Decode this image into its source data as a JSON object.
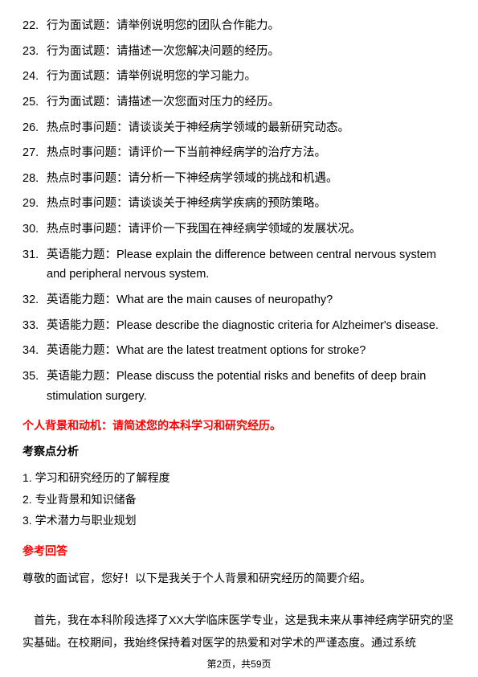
{
  "questions": [
    {
      "num": "22.",
      "text": "行为面试题：请举例说明您的团队合作能力。"
    },
    {
      "num": "23.",
      "text": "行为面试题：请描述一次您解决问题的经历。"
    },
    {
      "num": "24.",
      "text": "行为面试题：请举例说明您的学习能力。"
    },
    {
      "num": "25.",
      "text": "行为面试题：请描述一次您面对压力的经历。"
    },
    {
      "num": "26.",
      "text": "热点时事问题：请谈谈关于神经病学领域的最新研究动态。"
    },
    {
      "num": "27.",
      "text": "热点时事问题：请评价一下当前神经病学的治疗方法。"
    },
    {
      "num": "28.",
      "text": "热点时事问题：请分析一下神经病学领域的挑战和机遇。"
    },
    {
      "num": "29.",
      "text": "热点时事问题：请谈谈关于神经病学疾病的预防策略。"
    },
    {
      "num": "30.",
      "text": "热点时事问题：请评价一下我国在神经病学领域的发展状况。"
    },
    {
      "num": "31.",
      "text": "英语能力题：Please explain the difference between central nervous system and peripheral nervous system."
    },
    {
      "num": "32.",
      "text": "英语能力题：What are the main causes of neuropathy?"
    },
    {
      "num": "33.",
      "text": "英语能力题：Please describe the diagnostic criteria for Alzheimer's disease."
    },
    {
      "num": "34.",
      "text": "英语能力题：What are the latest treatment options for stroke?"
    },
    {
      "num": "35.",
      "text": "英语能力题：Please discuss the potential risks and benefits of deep brain stimulation surgery."
    }
  ],
  "section_title": "个人背景和动机：请简述您的本科学习和研究经历。",
  "analysis_heading": "考察点分析",
  "analysis_items": [
    "1. 学习和研究经历的了解程度",
    "2. 专业背景和知识储备",
    "3. 学术潜力与职业规划"
  ],
  "ref_heading": "参考回答",
  "ref_intro": "尊敬的面试官，您好！以下是我关于个人背景和研究经历的简要介绍。",
  "ref_para": "首先，我在本科阶段选择了XX大学临床医学专业，这是我未来从事神经病学研究的坚实基础。在校期间，我始终保持着对医学的热爱和对学术的严谨态度。通过系统",
  "footer": "第2页，共59页"
}
